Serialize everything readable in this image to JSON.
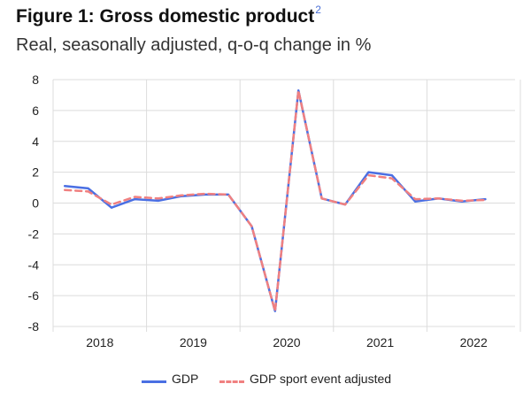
{
  "header": {
    "title": "Figure 1: Gross domestic product",
    "footnote_ref": "2",
    "subtitle": "Real, seasonally adjusted, q-o-q change in %"
  },
  "chart_data": {
    "type": "line",
    "title": "Figure 1: Gross domestic product",
    "subtitle": "Real, seasonally adjusted, q-o-q change in %",
    "xlabel": "",
    "ylabel": "",
    "ylim": [
      -8,
      8
    ],
    "yticks": [
      "8",
      "6",
      "4",
      "2",
      "0",
      "-2",
      "-4",
      "-6",
      "-8"
    ],
    "year_labels": [
      "2018",
      "2019",
      "2020",
      "2021",
      "2022"
    ],
    "x": [
      "2018 Q1",
      "2018 Q2",
      "2018 Q3",
      "2018 Q4",
      "2019 Q1",
      "2019 Q2",
      "2019 Q3",
      "2019 Q4",
      "2020 Q1",
      "2020 Q2",
      "2020 Q3",
      "2020 Q4",
      "2021 Q1",
      "2021 Q2",
      "2021 Q3",
      "2021 Q4",
      "2022 Q1",
      "2022 Q2",
      "2022 Q3"
    ],
    "series": [
      {
        "name": "GDP",
        "color": "#4a6fe3",
        "style": "solid",
        "values": [
          1.1,
          0.95,
          -0.3,
          0.25,
          0.15,
          0.45,
          0.55,
          0.55,
          -1.5,
          -7.0,
          7.3,
          0.3,
          -0.1,
          2.0,
          1.8,
          0.1,
          0.3,
          0.1,
          0.25
        ]
      },
      {
        "name": "GDP sport event adjusted",
        "color": "#f08080",
        "style": "dashed",
        "values": [
          0.85,
          0.75,
          -0.1,
          0.4,
          0.3,
          0.5,
          0.6,
          0.55,
          -1.5,
          -7.0,
          7.3,
          0.3,
          -0.1,
          1.8,
          1.6,
          0.25,
          0.3,
          0.15,
          0.2
        ]
      }
    ],
    "grid": true,
    "legend_position": "bottom"
  }
}
